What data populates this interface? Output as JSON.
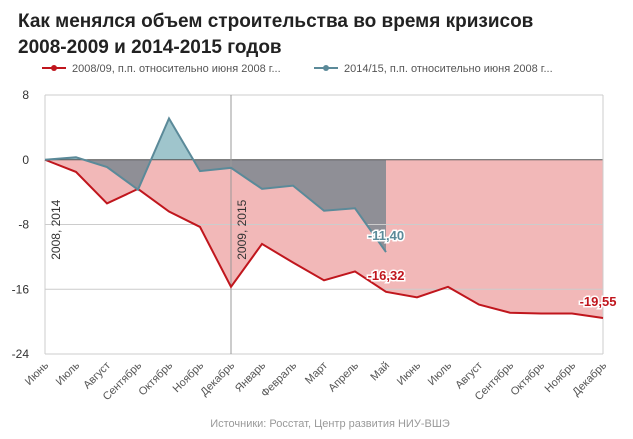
{
  "chart_data": {
    "type": "area-line",
    "title": [
      "Как менялся объем строительства во время кризисов",
      "2008-2009 и 2014-2015 годов"
    ],
    "categories": [
      "Июнь",
      "Июль",
      "Август",
      "Сентябрь",
      "Октябрь",
      "Ноябрь",
      "Декабрь",
      "Январь",
      "Февраль",
      "Март",
      "Апрель",
      "Май",
      "Июнь",
      "Июль",
      "Август",
      "Сентябрь",
      "Октябрь",
      "Ноябрь",
      "Декабрь"
    ],
    "series": [
      {
        "name": "2008/09, п.п. относительно июня 2008 г...",
        "color": "#c0161d",
        "fill": "#f2b8b8",
        "values": [
          0,
          -1.5,
          -5.4,
          -3.6,
          -6.4,
          -8.3,
          -15.7,
          -10.4,
          -12.7,
          -14.9,
          -13.8,
          -16.32,
          -17.0,
          -15.7,
          -17.9,
          -18.9,
          -19.0,
          -19.0,
          -19.55
        ],
        "value_labels": [
          null,
          null,
          null,
          null,
          null,
          null,
          null,
          null,
          null,
          null,
          null,
          "-16,32",
          null,
          null,
          null,
          null,
          null,
          null,
          "-19,55"
        ]
      },
      {
        "name": "2014/15, п.п. относительно июня 2008 г...",
        "color": "#5b8a99",
        "fill": "#9fc5cc",
        "fill_below": "#8f8f96",
        "values": [
          0,
          0.3,
          -0.9,
          -3.7,
          5.1,
          -1.4,
          -1.0,
          -3.6,
          -3.2,
          -6.3,
          -6.0,
          -11.4,
          null,
          null,
          null,
          null,
          null,
          null,
          null
        ],
        "value_labels": [
          null,
          null,
          null,
          null,
          null,
          null,
          null,
          null,
          null,
          null,
          null,
          "-11,40",
          null,
          null,
          null,
          null,
          null,
          null,
          null
        ]
      }
    ],
    "ylim": [
      -24,
      8
    ],
    "yticks": [
      8,
      0,
      -8,
      -16,
      -24
    ],
    "grid": true,
    "annotations": [
      "2008, 2014",
      "2009, 2015"
    ],
    "source": "Источники: Росстат, Центр развития НИУ-ВШЭ"
  }
}
